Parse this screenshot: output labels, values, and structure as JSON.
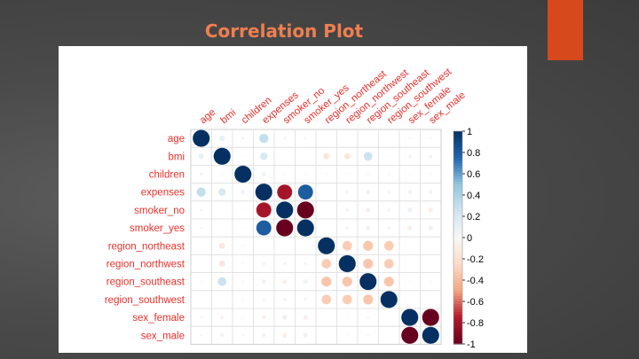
{
  "slide": {
    "title": "Correlation Plot"
  },
  "chart_data": {
    "type": "heatmap",
    "title": "",
    "labels": [
      "age",
      "bmi",
      "children",
      "expenses",
      "smoker_no",
      "smoker_yes",
      "region_northeast",
      "region_northwest",
      "region_southeast",
      "region_southwest",
      "sex_female",
      "sex_male"
    ],
    "matrix": [
      [
        1.0,
        0.11,
        0.04,
        0.3,
        0.03,
        -0.03,
        0.0,
        0.0,
        -0.01,
        0.01,
        0.02,
        -0.02
      ],
      [
        0.11,
        1.0,
        0.01,
        0.2,
        0.0,
        0.0,
        -0.14,
        -0.14,
        0.27,
        -0.01,
        -0.05,
        0.05
      ],
      [
        0.04,
        0.01,
        1.0,
        0.07,
        -0.01,
        0.01,
        -0.02,
        0.02,
        -0.02,
        0.02,
        -0.02,
        0.02
      ],
      [
        0.3,
        0.2,
        0.07,
        1.0,
        -0.79,
        0.79,
        0.01,
        -0.04,
        0.07,
        -0.04,
        -0.06,
        0.06
      ],
      [
        0.03,
        0.0,
        -0.01,
        -0.79,
        1.0,
        -1.0,
        -0.0,
        0.04,
        -0.07,
        0.04,
        0.08,
        -0.08
      ],
      [
        -0.03,
        0.0,
        0.01,
        0.79,
        -1.0,
        1.0,
        0.0,
        -0.04,
        0.07,
        -0.04,
        -0.08,
        0.08
      ],
      [
        0.0,
        -0.14,
        -0.02,
        0.01,
        -0.0,
        0.0,
        1.0,
        -0.32,
        -0.35,
        -0.32,
        0.0,
        -0.0
      ],
      [
        0.0,
        -0.14,
        0.02,
        -0.04,
        0.04,
        -0.04,
        -0.32,
        1.0,
        -0.35,
        -0.32,
        0.01,
        -0.01
      ],
      [
        -0.01,
        0.27,
        -0.02,
        0.07,
        -0.07,
        0.07,
        -0.35,
        -0.35,
        1.0,
        -0.35,
        -0.02,
        0.02
      ],
      [
        0.01,
        -0.01,
        0.02,
        -0.04,
        0.04,
        -0.04,
        -0.32,
        -0.32,
        -0.35,
        1.0,
        0.0,
        -0.0
      ],
      [
        0.02,
        -0.05,
        -0.02,
        -0.06,
        0.08,
        -0.08,
        0.0,
        0.01,
        -0.02,
        0.0,
        1.0,
        -1.0
      ],
      [
        -0.02,
        0.05,
        0.02,
        0.06,
        -0.08,
        0.08,
        -0.0,
        -0.01,
        0.02,
        -0.0,
        -1.0,
        1.0
      ]
    ],
    "colorbar": {
      "min": -1,
      "max": 1,
      "ticks": [
        "1",
        "0.8",
        "0.6",
        "0.4",
        "0.2",
        "0",
        "-0.2",
        "-0.4",
        "-0.6",
        "-0.8",
        "-1"
      ],
      "low_color": "#67001f",
      "mid_color": "#f7f7f7",
      "high_color": "#053061"
    },
    "label_color": "#e8312b",
    "grid": true
  }
}
